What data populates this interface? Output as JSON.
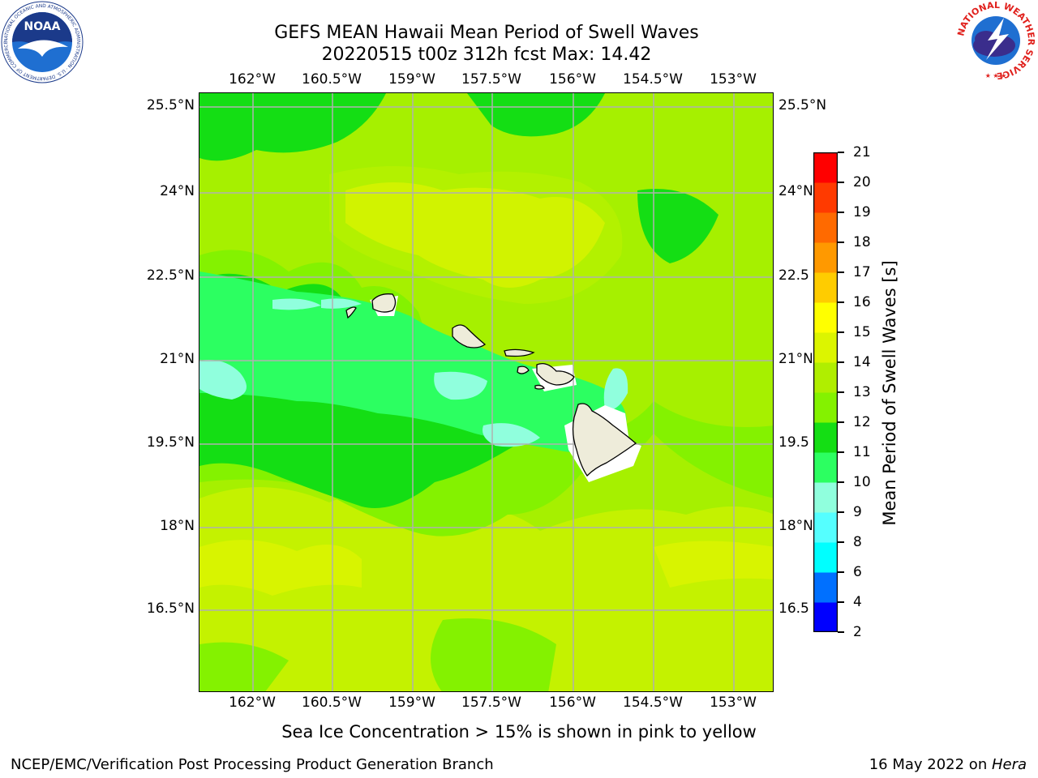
{
  "title": {
    "line1": "GEFS MEAN Hawaii Mean Period of Swell Waves",
    "line2": "20220515 t00z 312h fcst   Max: 14.42"
  },
  "map": {
    "longitude_labels": [
      "162°W",
      "160.5°W",
      "159°W",
      "157.5°W",
      "156°W",
      "154.5°W",
      "153°W"
    ],
    "latitude_labels": [
      "25.5°N",
      "24°N",
      "22.5°N",
      "21°N",
      "19.5°N",
      "18°N",
      "16.5°N"
    ],
    "right_latitude_labels": [
      "25.5°N",
      "24°N",
      "22.5",
      "21°N",
      "19.5",
      "18°N",
      "16.5"
    ],
    "background_color": "#a6f000",
    "islands": [
      "Kauai",
      "Niihau",
      "Oahu",
      "Molokai",
      "Lanai",
      "Maui",
      "Kahoolawe",
      "Hawaii"
    ]
  },
  "colorbar": {
    "label": "Mean Period of Swell Waves [s]",
    "ticks": [
      "2",
      "4",
      "6",
      "8",
      "9",
      "10",
      "11",
      "12",
      "13",
      "14",
      "15",
      "16",
      "17",
      "18",
      "19",
      "20",
      "21"
    ],
    "colors": [
      "#0000ff",
      "#0070ff",
      "#00ffff",
      "#55ffff",
      "#90ffdd",
      "#2cff61",
      "#14de14",
      "#84f200",
      "#b0ee00",
      "#dcf500",
      "#ffff00",
      "#ffcc00",
      "#ff9900",
      "#ff6a00",
      "#ff3a00",
      "#ff0000"
    ]
  },
  "caption": "Sea Ice Concentration > 15% is shown in pink to yellow",
  "footer": {
    "left": "NCEP/EMC/Verification Post Processing Product Generation Branch",
    "right_prefix": "16 May 2022 on ",
    "right_machine": "Hera"
  },
  "logos": {
    "left": "NOAA",
    "left_ring_text": "NATIONAL OCEANIC AND ATMOSPHERIC ADMINISTRATION · U.S. DEPARTMENT OF COMMERCE ·",
    "right_ring_text": "NATIONAL WEATHER SERVICE"
  }
}
